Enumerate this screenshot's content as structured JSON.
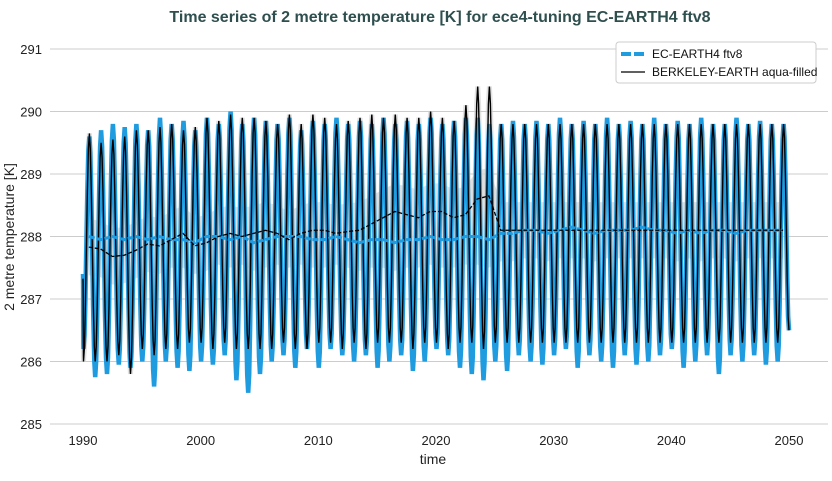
{
  "chart_data": {
    "type": "line",
    "title": "Time series of 2 metre temperature [K] for ece4-tuning EC-EARTH4 ftv8",
    "xlabel": "time",
    "ylabel": "2 metre temperature [K]",
    "xlim": [
      1988,
      2053
    ],
    "ylim": [
      285,
      291.3
    ],
    "xticks": [
      "1990",
      "2000",
      "2010",
      "2020",
      "2030",
      "2040",
      "2050"
    ],
    "yticks": [
      "285",
      "286",
      "287",
      "288",
      "289",
      "290",
      "291"
    ],
    "grid": true,
    "legend_position": "top-right",
    "legend": [
      "EC-EARTH4 ftv8",
      "BERKELEY-EARTH aqua-filled"
    ],
    "years_start": 1990,
    "series": [
      {
        "name": "EC-EARTH4 ftv8",
        "color": "#1f9be0",
        "style": "dashed",
        "annual_max": [
          289.6,
          289.7,
          289.8,
          289.75,
          289.8,
          289.7,
          289.9,
          289.8,
          289.85,
          289.7,
          289.9,
          289.8,
          290.0,
          289.8,
          289.9,
          289.85,
          289.8,
          289.9,
          289.7,
          289.85,
          289.8,
          289.9,
          289.8,
          289.85,
          289.8,
          289.9,
          289.8,
          289.85,
          289.8,
          289.9,
          289.8,
          289.85,
          289.9,
          289.9,
          289.8,
          289.8,
          289.85,
          289.8,
          289.85,
          289.8,
          289.9,
          289.8,
          289.85,
          289.8,
          289.9,
          289.8,
          289.85,
          289.8,
          289.9,
          289.8,
          289.85,
          289.8,
          289.9,
          289.8,
          289.8,
          289.9,
          289.8,
          289.85,
          289.8,
          289.8
        ],
        "annual_min": [
          286.2,
          285.75,
          285.8,
          285.95,
          285.9,
          286.0,
          285.6,
          286.0,
          285.9,
          285.85,
          286.0,
          285.95,
          286.1,
          285.7,
          285.5,
          285.8,
          286.0,
          286.1,
          285.9,
          286.2,
          285.9,
          286.2,
          286.1,
          286.0,
          286.1,
          285.9,
          286.0,
          286.1,
          285.85,
          286.0,
          286.2,
          286.1,
          285.9,
          285.8,
          285.7,
          286.0,
          285.85,
          286.1,
          286.0,
          285.95,
          286.1,
          286.2,
          285.9,
          286.1,
          286.0,
          285.9,
          286.1,
          285.95,
          286.0,
          286.1,
          286.2,
          285.9,
          286.0,
          286.1,
          285.8,
          286.1,
          286.0,
          286.1,
          285.95,
          286.0
        ],
        "running_mean": [
          288.0,
          287.95,
          288.0,
          287.95,
          288.0,
          287.95,
          288.0,
          287.95,
          287.95,
          287.9,
          288.0,
          288.0,
          287.95,
          288.0,
          287.9,
          287.95,
          288.0,
          288.0,
          288.0,
          287.95,
          287.95,
          288.0,
          287.95,
          287.9,
          287.95,
          287.95,
          287.9,
          287.95,
          287.95,
          288.0,
          287.95,
          287.95,
          288.0,
          288.0,
          287.95,
          288.05,
          288.05,
          288.1,
          288.1,
          288.05,
          288.1,
          288.15,
          288.1,
          288.05,
          288.1,
          288.1,
          288.1,
          288.15,
          288.1,
          288.1,
          288.05,
          288.1,
          288.05,
          288.1,
          288.1,
          288.05,
          288.1,
          288.1,
          288.1,
          288.1
        ]
      },
      {
        "name": "BERKELEY-EARTH aqua-filled",
        "color": "#000000",
        "style": "solid",
        "annual_max": [
          289.65,
          289.5,
          289.55,
          289.6,
          289.7,
          289.7,
          289.75,
          289.8,
          289.7,
          289.75,
          289.9,
          289.85,
          289.95,
          289.9,
          289.9,
          289.85,
          289.8,
          289.95,
          289.8,
          289.95,
          289.9,
          289.8,
          289.85,
          289.9,
          289.95,
          289.9,
          289.95,
          289.9,
          289.9,
          290.0,
          289.9,
          289.85,
          290.1,
          290.4,
          290.4,
          289.8,
          289.8,
          289.8,
          289.8,
          289.8,
          289.8,
          289.8,
          289.8,
          289.8,
          289.8,
          289.8,
          289.8,
          289.8,
          289.8,
          289.8,
          289.8,
          289.8,
          289.8,
          289.8,
          289.8,
          289.8,
          289.8,
          289.8,
          289.8,
          289.8
        ],
        "annual_min": [
          286.0,
          286.0,
          286.0,
          286.1,
          285.8,
          286.2,
          286.1,
          286.2,
          286.2,
          286.3,
          286.3,
          286.2,
          286.3,
          286.2,
          286.2,
          286.2,
          286.2,
          286.3,
          286.2,
          286.2,
          286.3,
          286.3,
          286.2,
          286.3,
          286.2,
          286.3,
          286.3,
          286.3,
          286.2,
          286.3,
          286.3,
          286.2,
          286.3,
          286.3,
          286.2,
          286.3,
          286.3,
          286.3,
          286.3,
          286.3,
          286.3,
          286.3,
          286.3,
          286.3,
          286.3,
          286.3,
          286.3,
          286.3,
          286.3,
          286.3,
          286.3,
          286.3,
          286.3,
          286.3,
          286.3,
          286.3,
          286.3,
          286.3,
          286.3,
          286.3
        ],
        "running_mean": [
          287.83,
          287.8,
          287.68,
          287.7,
          287.78,
          287.88,
          287.85,
          287.95,
          288.05,
          287.85,
          287.9,
          288.0,
          288.05,
          288.0,
          288.05,
          288.1,
          288.05,
          287.95,
          288.05,
          288.1,
          288.1,
          288.05,
          288.08,
          288.1,
          288.2,
          288.3,
          288.4,
          288.35,
          288.3,
          288.4,
          288.4,
          288.3,
          288.35,
          288.6,
          288.65,
          288.1,
          288.1,
          288.1,
          288.1,
          288.1,
          288.1,
          288.1,
          288.1,
          288.1,
          288.1,
          288.1,
          288.1,
          288.1,
          288.1,
          288.1,
          288.1,
          288.1,
          288.1,
          288.1,
          288.1,
          288.1,
          288.1,
          288.1,
          288.1,
          288.1
        ]
      }
    ]
  }
}
